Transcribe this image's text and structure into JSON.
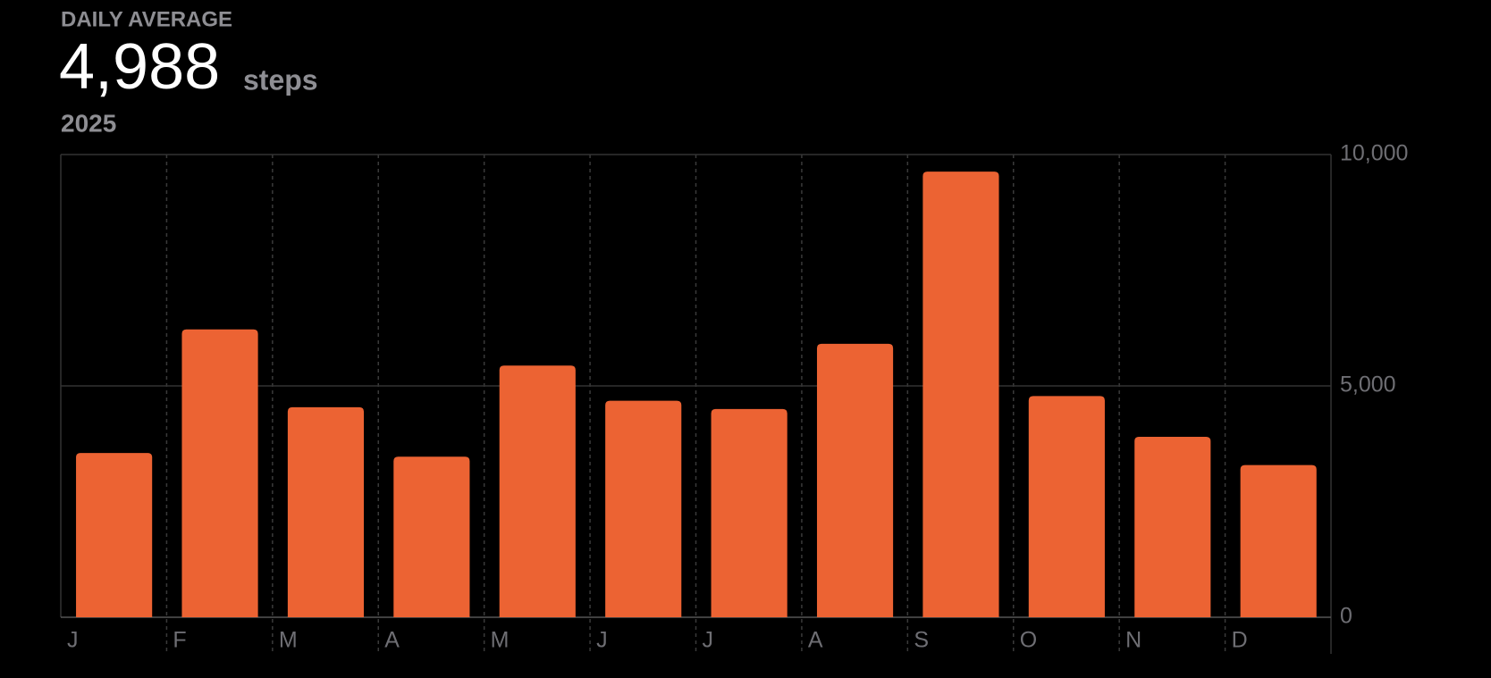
{
  "header": {
    "label": "DAILY AVERAGE",
    "value": "4,988",
    "unit": "steps",
    "period": "2025"
  },
  "chart_data": {
    "type": "bar",
    "categories": [
      "J",
      "F",
      "M",
      "A",
      "M",
      "J",
      "J",
      "A",
      "S",
      "O",
      "N",
      "D"
    ],
    "values": [
      3550,
      6220,
      4540,
      3470,
      5440,
      4680,
      4500,
      5910,
      9630,
      4780,
      3900,
      3290
    ],
    "color": "#ec6333",
    "ylim": [
      0,
      10000
    ],
    "yticks": [
      0,
      {
        "value": 5000,
        "label": "5,000"
      },
      {
        "value": 10000,
        "label": "10,000"
      }
    ],
    "grid": true
  }
}
